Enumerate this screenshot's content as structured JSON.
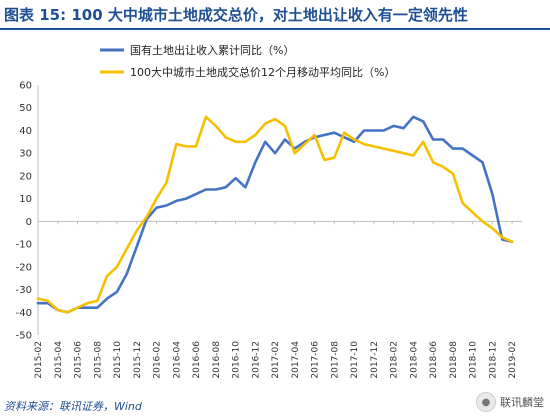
{
  "header": {
    "title": "图表 15: 100 大中城市土地成交总价，对土地出让收入有一定领先性"
  },
  "footer": {
    "source": "资料来源：联讯证券，Wind",
    "watermark": "联讯麟堂",
    "watermark_icon": "wechat-icon"
  },
  "chart_data": {
    "type": "line",
    "xlim": [
      "2015-02",
      "2019-03"
    ],
    "ylim": [
      -50,
      60
    ],
    "ytick_step": 10,
    "grid": false,
    "legend_position": "top-left",
    "x_tick_labels": [
      "2015-02",
      "2015-04",
      "2015-06",
      "2015-08",
      "2015-10",
      "2015-12",
      "2016-02",
      "2016-04",
      "2016-06",
      "2016-08",
      "2016-10",
      "2016-12",
      "2017-02",
      "2017-04",
      "2017-06",
      "2017-08",
      "2017-10",
      "2017-12",
      "2018-02",
      "2018-04",
      "2018-06",
      "2018-08",
      "2018-10",
      "2018-12",
      "2019-02"
    ],
    "series": [
      {
        "name": "国有土地出让收入累计同比（%）",
        "color": "#4472c4",
        "points": [
          [
            "2015-02",
            -36
          ],
          [
            "2015-03",
            -36
          ],
          [
            "2015-04",
            -39
          ],
          [
            "2015-05",
            -40
          ],
          [
            "2015-06",
            -38
          ],
          [
            "2015-07",
            -38
          ],
          [
            "2015-08",
            -38
          ],
          [
            "2015-09",
            -34
          ],
          [
            "2015-10",
            -31
          ],
          [
            "2015-11",
            -23
          ],
          [
            "2015-12",
            -11
          ],
          [
            "2016-01",
            1
          ],
          [
            "2016-02",
            6
          ],
          [
            "2016-03",
            7
          ],
          [
            "2016-04",
            9
          ],
          [
            "2016-05",
            10
          ],
          [
            "2016-06",
            12
          ],
          [
            "2016-07",
            14
          ],
          [
            "2016-08",
            14
          ],
          [
            "2016-09",
            15
          ],
          [
            "2016-10",
            19
          ],
          [
            "2016-11",
            15
          ],
          [
            "2016-12",
            26
          ],
          [
            "2017-01",
            35
          ],
          [
            "2017-02",
            30
          ],
          [
            "2017-03",
            36
          ],
          [
            "2017-04",
            32
          ],
          [
            "2017-05",
            35
          ],
          [
            "2017-06",
            37
          ],
          [
            "2017-07",
            38
          ],
          [
            "2017-08",
            39
          ],
          [
            "2017-09",
            37
          ],
          [
            "2017-10",
            35
          ],
          [
            "2017-11",
            40
          ],
          [
            "2017-12",
            40
          ],
          [
            "2018-01",
            40
          ],
          [
            "2018-02",
            42
          ],
          [
            "2018-03",
            41
          ],
          [
            "2018-04",
            46
          ],
          [
            "2018-05",
            44
          ],
          [
            "2018-06",
            36
          ],
          [
            "2018-07",
            36
          ],
          [
            "2018-08",
            32
          ],
          [
            "2018-09",
            32
          ],
          [
            "2018-10",
            29
          ],
          [
            "2018-11",
            26
          ],
          [
            "2018-12",
            12
          ],
          [
            "2019-01",
            -8
          ],
          [
            "2019-02",
            -9
          ]
        ]
      },
      {
        "name": "100大中城市土地成交总价12个月移动平均同比（%）",
        "color": "#f6c000",
        "points": [
          [
            "2015-02",
            -34
          ],
          [
            "2015-03",
            -35
          ],
          [
            "2015-04",
            -39
          ],
          [
            "2015-05",
            -40
          ],
          [
            "2015-06",
            -38
          ],
          [
            "2015-07",
            -36
          ],
          [
            "2015-08",
            -35
          ],
          [
            "2015-09",
            -24
          ],
          [
            "2015-10",
            -20
          ],
          [
            "2015-11",
            -12
          ],
          [
            "2015-12",
            -4
          ],
          [
            "2016-01",
            2
          ],
          [
            "2016-02",
            10
          ],
          [
            "2016-03",
            17
          ],
          [
            "2016-04",
            34
          ],
          [
            "2016-05",
            33
          ],
          [
            "2016-06",
            33
          ],
          [
            "2016-07",
            46
          ],
          [
            "2016-08",
            42
          ],
          [
            "2016-09",
            37
          ],
          [
            "2016-10",
            35
          ],
          [
            "2016-11",
            35
          ],
          [
            "2016-12",
            38
          ],
          [
            "2017-01",
            43
          ],
          [
            "2017-02",
            45
          ],
          [
            "2017-03",
            42
          ],
          [
            "2017-04",
            30
          ],
          [
            "2017-05",
            34
          ],
          [
            "2017-06",
            38
          ],
          [
            "2017-07",
            27
          ],
          [
            "2017-08",
            28
          ],
          [
            "2017-09",
            39
          ],
          [
            "2017-10",
            36
          ],
          [
            "2017-11",
            34
          ],
          [
            "2017-12",
            33
          ],
          [
            "2018-01",
            32
          ],
          [
            "2018-02",
            31
          ],
          [
            "2018-03",
            30
          ],
          [
            "2018-04",
            29
          ],
          [
            "2018-05",
            35
          ],
          [
            "2018-06",
            26
          ],
          [
            "2018-07",
            24
          ],
          [
            "2018-08",
            21
          ],
          [
            "2018-09",
            8
          ],
          [
            "2018-10",
            4
          ],
          [
            "2018-11",
            0
          ],
          [
            "2018-12",
            -3
          ],
          [
            "2019-01",
            -7
          ],
          [
            "2019-02",
            -9
          ]
        ]
      }
    ]
  }
}
